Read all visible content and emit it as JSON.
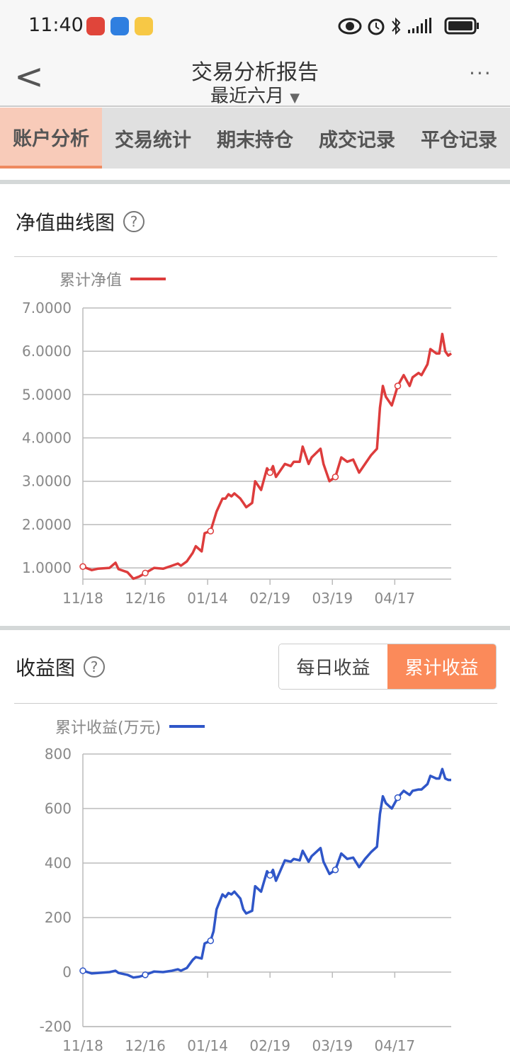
{
  "status_bar": {
    "time": "11:40",
    "icons": [
      "eye-icon",
      "alarm-icon",
      "bluetooth-icon",
      "signal-icon",
      "battery-icon"
    ]
  },
  "header": {
    "title": "交易分析报告",
    "period": "最近六月",
    "more": "···"
  },
  "tabs": [
    {
      "label": "账户分析",
      "active": true
    },
    {
      "label": "交易统计"
    },
    {
      "label": "期末持仓"
    },
    {
      "label": "成交记录"
    },
    {
      "label": "平仓记录"
    }
  ],
  "colors": {
    "accent": "#fb8a5a",
    "nav_line": "#dd3c3c",
    "gain_line": "#2f56c8"
  },
  "section1": {
    "title": "净值曲线图",
    "help": "?"
  },
  "section2": {
    "title": "收益图",
    "help": "?",
    "toggle": [
      {
        "label": "每日收益",
        "active": false
      },
      {
        "label": "累计收益",
        "active": true
      }
    ]
  },
  "chart_data": [
    {
      "type": "line",
      "legend": "累计净值",
      "ylim": [
        0.74,
        7.0
      ],
      "yticks": [
        "1.0000",
        "2.0000",
        "3.0000",
        "4.0000",
        "5.0000",
        "6.0000",
        "7.0000"
      ],
      "ytick_values": [
        1,
        2,
        3,
        4,
        5,
        6,
        7
      ],
      "xticks": [
        {
          "label": "11/18",
          "index": 0
        },
        {
          "label": "12/16",
          "index": 21
        },
        {
          "label": "01/14",
          "index": 42
        },
        {
          "label": "02/19",
          "index": 63
        },
        {
          "label": "03/19",
          "index": 84
        },
        {
          "label": "04/17",
          "index": 105
        }
      ],
      "xmax": 124,
      "markers": [
        0,
        21,
        42,
        63,
        84,
        105
      ],
      "points": [
        [
          0,
          1.03
        ],
        [
          3,
          0.95
        ],
        [
          5,
          0.98
        ],
        [
          9,
          1.0
        ],
        [
          11,
          1.12
        ],
        [
          12,
          0.97
        ],
        [
          15,
          0.9
        ],
        [
          17,
          0.75
        ],
        [
          19,
          0.8
        ],
        [
          21,
          0.88
        ],
        [
          24,
          1.0
        ],
        [
          27,
          0.98
        ],
        [
          30,
          1.05
        ],
        [
          32,
          1.1
        ],
        [
          33,
          1.05
        ],
        [
          35,
          1.15
        ],
        [
          37,
          1.35
        ],
        [
          38,
          1.5
        ],
        [
          40,
          1.38
        ],
        [
          41,
          1.8
        ],
        [
          43,
          1.85
        ],
        [
          45,
          2.3
        ],
        [
          47,
          2.6
        ],
        [
          48,
          2.6
        ],
        [
          49,
          2.7
        ],
        [
          50,
          2.65
        ],
        [
          51,
          2.72
        ],
        [
          53,
          2.6
        ],
        [
          54,
          2.5
        ],
        [
          55,
          2.4
        ],
        [
          57,
          2.5
        ],
        [
          58,
          3.0
        ],
        [
          60,
          2.8
        ],
        [
          62,
          3.3
        ],
        [
          63,
          3.2
        ],
        [
          64,
          3.35
        ],
        [
          65,
          3.1
        ],
        [
          68,
          3.4
        ],
        [
          70,
          3.35
        ],
        [
          71,
          3.45
        ],
        [
          73,
          3.45
        ],
        [
          74,
          3.8
        ],
        [
          76,
          3.4
        ],
        [
          77,
          3.55
        ],
        [
          80,
          3.75
        ],
        [
          81,
          3.4
        ],
        [
          83,
          3.0
        ],
        [
          85,
          3.1
        ],
        [
          87,
          3.55
        ],
        [
          89,
          3.45
        ],
        [
          91,
          3.5
        ],
        [
          93,
          3.2
        ],
        [
          95,
          3.4
        ],
        [
          97,
          3.6
        ],
        [
          99,
          3.75
        ],
        [
          100,
          4.7
        ],
        [
          101,
          5.2
        ],
        [
          102,
          4.95
        ],
        [
          104,
          4.75
        ],
        [
          106,
          5.2
        ],
        [
          108,
          5.45
        ],
        [
          110,
          5.2
        ],
        [
          111,
          5.4
        ],
        [
          113,
          5.5
        ],
        [
          114,
          5.45
        ],
        [
          116,
          5.7
        ],
        [
          117,
          6.05
        ],
        [
          119,
          5.95
        ],
        [
          120,
          5.95
        ],
        [
          121,
          6.4
        ],
        [
          122,
          6.0
        ],
        [
          123,
          5.9
        ],
        [
          124,
          5.95
        ]
      ]
    },
    {
      "type": "line",
      "legend": "累计收益(万元)",
      "ylim": [
        -200,
        800
      ],
      "yticks": [
        "-200",
        "0",
        "200",
        "400",
        "600",
        "800"
      ],
      "ytick_values": [
        -200,
        0,
        200,
        400,
        600,
        800
      ],
      "xticks": [
        {
          "label": "11/18",
          "index": 0
        },
        {
          "label": "12/16",
          "index": 21
        },
        {
          "label": "01/14",
          "index": 42
        },
        {
          "label": "02/19",
          "index": 63
        },
        {
          "label": "03/19",
          "index": 84
        },
        {
          "label": "04/17",
          "index": 105
        }
      ],
      "xmax": 124,
      "markers": [
        0,
        21,
        42,
        63,
        84,
        105
      ],
      "points": [
        [
          0,
          5
        ],
        [
          3,
          -5
        ],
        [
          5,
          -3
        ],
        [
          9,
          0
        ],
        [
          11,
          5
        ],
        [
          12,
          -3
        ],
        [
          15,
          -10
        ],
        [
          17,
          -20
        ],
        [
          19,
          -17
        ],
        [
          21,
          -10
        ],
        [
          24,
          2
        ],
        [
          27,
          0
        ],
        [
          30,
          5
        ],
        [
          32,
          10
        ],
        [
          33,
          5
        ],
        [
          35,
          15
        ],
        [
          37,
          45
        ],
        [
          38,
          55
        ],
        [
          40,
          50
        ],
        [
          41,
          105
        ],
        [
          43,
          115
        ],
        [
          44,
          150
        ],
        [
          45,
          230
        ],
        [
          47,
          285
        ],
        [
          48,
          275
        ],
        [
          49,
          290
        ],
        [
          50,
          285
        ],
        [
          51,
          295
        ],
        [
          53,
          270
        ],
        [
          54,
          230
        ],
        [
          55,
          215
        ],
        [
          57,
          225
        ],
        [
          58,
          315
        ],
        [
          60,
          295
        ],
        [
          62,
          370
        ],
        [
          63,
          355
        ],
        [
          64,
          375
        ],
        [
          65,
          335
        ],
        [
          68,
          410
        ],
        [
          70,
          405
        ],
        [
          71,
          415
        ],
        [
          73,
          410
        ],
        [
          74,
          445
        ],
        [
          76,
          405
        ],
        [
          77,
          425
        ],
        [
          80,
          455
        ],
        [
          81,
          405
        ],
        [
          83,
          360
        ],
        [
          85,
          375
        ],
        [
          87,
          435
        ],
        [
          89,
          415
        ],
        [
          91,
          420
        ],
        [
          93,
          385
        ],
        [
          95,
          415
        ],
        [
          97,
          440
        ],
        [
          99,
          460
        ],
        [
          100,
          580
        ],
        [
          101,
          645
        ],
        [
          102,
          620
        ],
        [
          104,
          600
        ],
        [
          106,
          640
        ],
        [
          108,
          665
        ],
        [
          110,
          650
        ],
        [
          111,
          665
        ],
        [
          113,
          670
        ],
        [
          114,
          670
        ],
        [
          116,
          690
        ],
        [
          117,
          720
        ],
        [
          119,
          710
        ],
        [
          120,
          710
        ],
        [
          121,
          745
        ],
        [
          122,
          710
        ],
        [
          123,
          705
        ],
        [
          124,
          705
        ]
      ]
    }
  ]
}
